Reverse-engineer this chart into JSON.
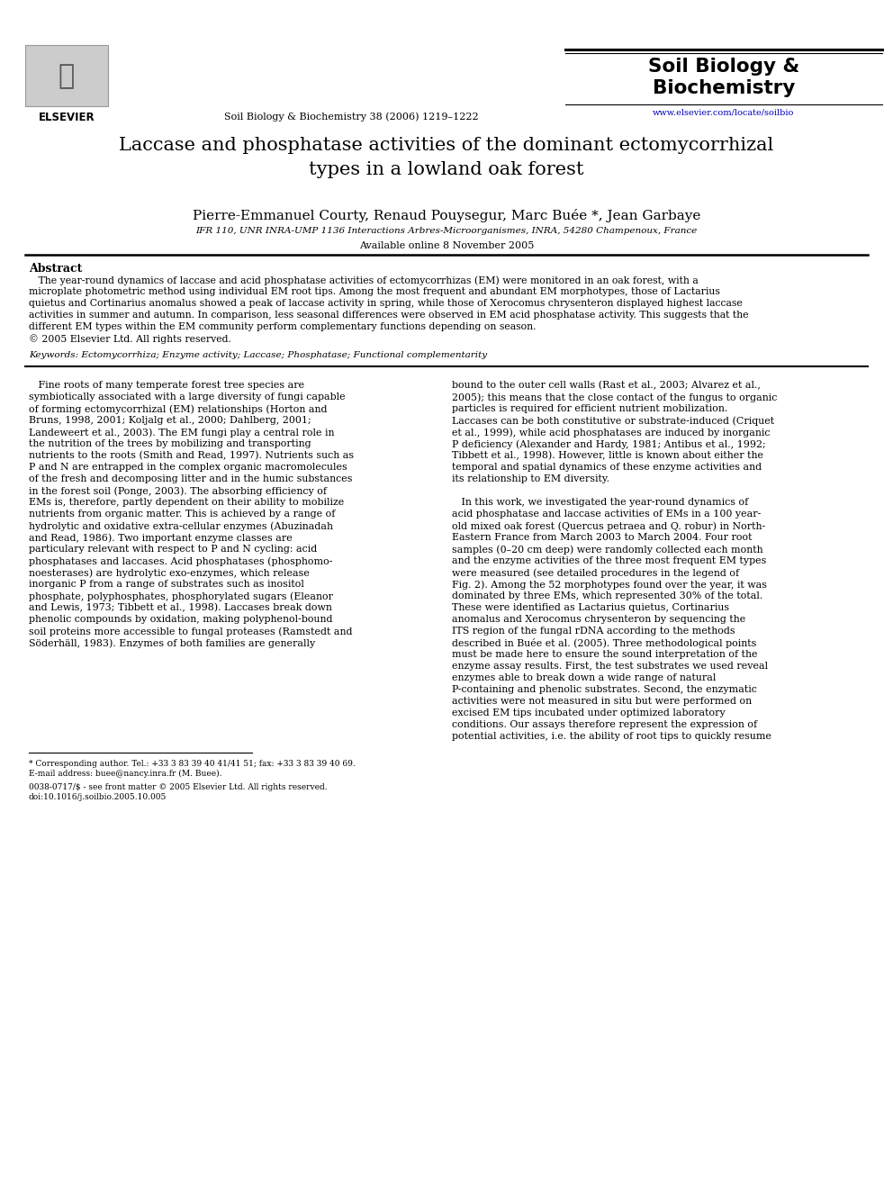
{
  "title": "Laccase and phosphatase activities of the dominant ectomycorrhizal\ntypes in a lowland oak forest",
  "authors": "Pierre-Emmanuel Courty, Renaud Pouysegur, Marc Buée *, Jean Garbaye",
  "affiliation": "IFR 110, UNR INRA-UMP 1136 Interactions Arbres-Microorganismes, INRA, 54280 Champenoux, France",
  "available_online": "Available online 8 November 2005",
  "journal_header": "Soil Biology & Biochemistry 38 (2006) 1219–1222",
  "journal_name_line1": "Soil Biology &",
  "journal_name_line2": "Biochemistry",
  "journal_url": "www.elsevier.com/locate/soilbio",
  "abstract_title": "Abstract",
  "keywords_text": "Keywords: Ectomycorrhiza; Enzyme activity; Laccase; Phosphatase; Functional complementarity",
  "footnote1": "* Corresponding author. Tel.: +33 3 83 39 40 41/41 51; fax: +33 3 83 39 40 69.",
  "footnote2": "E-mail address: buee@nancy.inra.fr (M. Buee).",
  "footnote3": "0038-0717/$ - see front matter © 2005 Elsevier Ltd. All rights reserved.",
  "footnote4": "doi:10.1016/j.soilbio.2005.10.005",
  "bg_color": "#ffffff",
  "text_color": "#000000",
  "link_color": "#0000bb",
  "abstract_lines": [
    "   The year-round dynamics of laccase and acid phosphatase activities of ectomycorrhizas (EM) were monitored in an oak forest, with a",
    "microplate photometric method using individual EM root tips. Among the most frequent and abundant EM morphotypes, those of Lactarius",
    "quietus and Cortinarius anomalus showed a peak of laccase activity in spring, while those of Xerocomus chrysenteron displayed highest laccase",
    "activities in summer and autumn. In comparison, less seasonal differences were observed in EM acid phosphatase activity. This suggests that the",
    "different EM types within the EM community perform complementary functions depending on season.",
    "© 2005 Elsevier Ltd. All rights reserved."
  ],
  "left_col_lines": [
    "   Fine roots of many temperate forest tree species are",
    "symbiotically associated with a large diversity of fungi capable",
    "of forming ectomycorrhizal (EM) relationships (Horton and",
    "Bruns, 1998, 2001; Koljalg et al., 2000; Dahlberg, 2001;",
    "Landeweert et al., 2003). The EM fungi play a central role in",
    "the nutrition of the trees by mobilizing and transporting",
    "nutrients to the roots (Smith and Read, 1997). Nutrients such as",
    "P and N are entrapped in the complex organic macromolecules",
    "of the fresh and decomposing litter and in the humic substances",
    "in the forest soil (Ponge, 2003). The absorbing efficiency of",
    "EMs is, therefore, partly dependent on their ability to mobilize",
    "nutrients from organic matter. This is achieved by a range of",
    "hydrolytic and oxidative extra-cellular enzymes (Abuzinadah",
    "and Read, 1986). Two important enzyme classes are",
    "particulary relevant with respect to P and N cycling: acid",
    "phosphatases and laccases. Acid phosphatases (phosphomo-",
    "noesterases) are hydrolytic exo-enzymes, which release",
    "inorganic P from a range of substrates such as inositol",
    "phosphate, polyphosphates, phosphorylated sugars (Eleanor",
    "and Lewis, 1973; Tibbett et al., 1998). Laccases break down",
    "phenolic compounds by oxidation, making polyphenol-bound",
    "soil proteins more accessible to fungal proteases (Ramstedt and",
    "Söderhäll, 1983). Enzymes of both families are generally"
  ],
  "right_col_lines": [
    "bound to the outer cell walls (Rast et al., 2003; Alvarez et al.,",
    "2005); this means that the close contact of the fungus to organic",
    "particles is required for efficient nutrient mobilization.",
    "Laccases can be both constitutive or substrate-induced (Criquet",
    "et al., 1999), while acid phosphatases are induced by inorganic",
    "P deficiency (Alexander and Hardy, 1981; Antibus et al., 1992;",
    "Tibbett et al., 1998). However, little is known about either the",
    "temporal and spatial dynamics of these enzyme activities and",
    "its relationship to EM diversity.",
    "",
    "   In this work, we investigated the year-round dynamics of",
    "acid phosphatase and laccase activities of EMs in a 100 year-",
    "old mixed oak forest (Quercus petraea and Q. robur) in North-",
    "Eastern France from March 2003 to March 2004. Four root",
    "samples (0–20 cm deep) were randomly collected each month",
    "and the enzyme activities of the three most frequent EM types",
    "were measured (see detailed procedures in the legend of",
    "Fig. 2). Among the 52 morphotypes found over the year, it was",
    "dominated by three EMs, which represented 30% of the total.",
    "These were identified as Lactarius quietus, Cortinarius",
    "anomalus and Xerocomus chrysenteron by sequencing the",
    "ITS region of the fungal rDNA according to the methods",
    "described in Buée et al. (2005). Three methodological points",
    "must be made here to ensure the sound interpretation of the",
    "enzyme assay results. First, the test substrates we used reveal",
    "enzymes able to break down a wide range of natural",
    "P-containing and phenolic substrates. Second, the enzymatic",
    "activities were not measured in situ but were performed on",
    "excised EM tips incubated under optimized laboratory",
    "conditions. Our assays therefore represent the expression of",
    "potential activities, i.e. the ability of root tips to quickly resume"
  ]
}
